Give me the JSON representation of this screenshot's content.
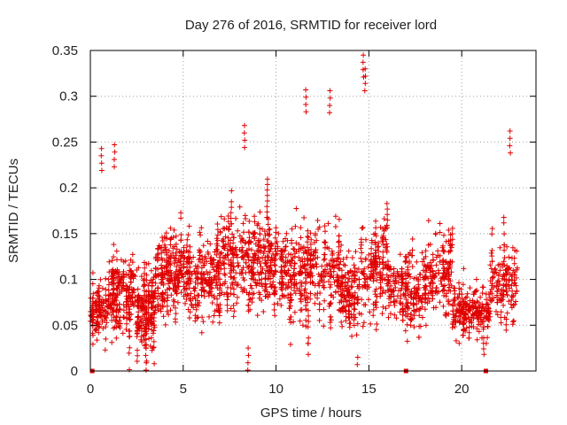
{
  "chart_data": {
    "type": "scatter",
    "title": "Day 276 of 2016, SRMTID for receiver lord",
    "xlabel": "GPS time / hours",
    "ylabel": "SRMTID / TECUs",
    "xlim": [
      0,
      24
    ],
    "ylim": [
      0,
      0.35
    ],
    "xticks": [
      0,
      5,
      10,
      15,
      20
    ],
    "xtick_labels": [
      "0",
      "5",
      "10",
      "15",
      "20"
    ],
    "yticks": [
      0,
      0.05,
      0.1,
      0.15,
      0.2,
      0.25,
      0.3,
      0.35
    ],
    "ytick_labels": [
      "0",
      "0.05",
      "0.1",
      "0.15",
      "0.2",
      "0.25",
      "0.3",
      "0.35"
    ],
    "grid": true,
    "marker": "plus",
    "color": "#e00000",
    "zero_points": [
      0.1,
      17.0,
      21.3
    ],
    "notable_points": [
      {
        "x": 14.7,
        "y": 0.345
      },
      {
        "x": 14.8,
        "y": 0.33
      },
      {
        "x": 11.6,
        "y": 0.307
      },
      {
        "x": 12.9,
        "y": 0.306
      },
      {
        "x": 22.6,
        "y": 0.262
      },
      {
        "x": 8.3,
        "y": 0.268
      },
      {
        "x": 14.4,
        "y": 0.015
      },
      {
        "x": 3.0,
        "y": 0.025
      },
      {
        "x": 8.5,
        "y": 0.025
      },
      {
        "x": 1.3,
        "y": 0.247
      },
      {
        "x": 0.6,
        "y": 0.243
      }
    ],
    "series_segments": [
      {
        "x": [
          0.0,
          1.0
        ],
        "mean": 0.065,
        "spread": 0.025,
        "n": 30
      },
      {
        "x": [
          1.0,
          2.5
        ],
        "mean": 0.085,
        "spread": 0.04,
        "n": 50
      },
      {
        "x": [
          2.5,
          3.5
        ],
        "mean": 0.065,
        "spread": 0.035,
        "n": 40
      },
      {
        "x": [
          3.5,
          5.0
        ],
        "mean": 0.105,
        "spread": 0.05,
        "n": 50
      },
      {
        "x": [
          5.0,
          7.0
        ],
        "mean": 0.1,
        "spread": 0.045,
        "n": 60
      },
      {
        "x": [
          7.0,
          9.0
        ],
        "mean": 0.12,
        "spread": 0.05,
        "n": 60
      },
      {
        "x": [
          9.0,
          11.0
        ],
        "mean": 0.115,
        "spread": 0.05,
        "n": 60
      },
      {
        "x": [
          11.0,
          13.5
        ],
        "mean": 0.11,
        "spread": 0.055,
        "n": 70
      },
      {
        "x": [
          13.5,
          14.5
        ],
        "mean": 0.085,
        "spread": 0.045,
        "n": 35
      },
      {
        "x": [
          14.5,
          16.0
        ],
        "mean": 0.11,
        "spread": 0.055,
        "n": 45
      },
      {
        "x": [
          16.0,
          18.0
        ],
        "mean": 0.09,
        "spread": 0.04,
        "n": 55
      },
      {
        "x": [
          18.0,
          19.5
        ],
        "mean": 0.105,
        "spread": 0.045,
        "n": 45
      },
      {
        "x": [
          19.5,
          21.5
        ],
        "mean": 0.065,
        "spread": 0.025,
        "n": 60
      },
      {
        "x": [
          21.5,
          23.0
        ],
        "mean": 0.095,
        "spread": 0.04,
        "n": 40
      }
    ]
  }
}
